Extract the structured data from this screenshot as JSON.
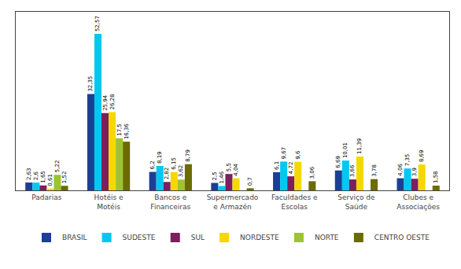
{
  "chart_data": {
    "type": "bar",
    "categories": [
      "Padarias",
      "Hotéis e\nMotéis",
      "Bancos e\nFinanceiras",
      "Supermercado\ne Armazén",
      "Faculdades e\nEscolas",
      "Serviço de\nSaúde",
      "Clubes e\nAssociações"
    ],
    "series": [
      {
        "name": "BRASIL",
        "color": "#1c3f94",
        "values": [
          2.63,
          32.35,
          6.2,
          2.5,
          6.1,
          6.69,
          4.06
        ],
        "value_labels": [
          "2,63",
          "32,35",
          "6,2",
          "2,5",
          "6,1",
          "6,69",
          "4,06"
        ]
      },
      {
        "name": "SUDESTE",
        "color": "#00c8f0",
        "values": [
          2.6,
          52.57,
          8.19,
          1.46,
          9.67,
          10.01,
          7.35
        ],
        "value_labels": [
          "2,6",
          "52,57",
          "8,19",
          "1,46",
          "9,67",
          "10,01",
          "7,35"
        ]
      },
      {
        "name": "SUL",
        "color": "#7b1f5e",
        "values": [
          1.65,
          25.94,
          2.82,
          5.5,
          4.72,
          3.66,
          3.9
        ],
        "value_labels": [
          "1,65",
          "25,94",
          "2,82",
          "5,5",
          "4,72",
          "3,66",
          "3,9"
        ]
      },
      {
        "name": "NORDESTE",
        "color": "#f5d800",
        "values": [
          0.61,
          26.28,
          6.15,
          4.04,
          9.6,
          11.39,
          8.69
        ],
        "value_labels": [
          "0,61",
          "26,28",
          "6,15",
          "4,04",
          "9,6",
          "11,39",
          "8,69"
        ]
      },
      {
        "name": "NORTE",
        "color": "#9dc430",
        "values": [
          5.22,
          17.5,
          3.62,
          0,
          0,
          0,
          0
        ],
        "value_labels": [
          "5,22",
          "17,5",
          "3,62",
          null,
          null,
          null,
          null
        ]
      },
      {
        "name": "CENTRO OESTE",
        "color": "#6b6b00",
        "values": [
          1.52,
          16.36,
          8.79,
          0.7,
          3.06,
          3.78,
          1.58
        ],
        "value_labels": [
          "1,52",
          "16,36",
          "8,79",
          "0,7",
          "3,06",
          "3,78",
          "1,58"
        ]
      }
    ],
    "ylim": [
      0,
      60
    ],
    "data_labels": true,
    "tick_labels": "x",
    "grid": false,
    "legend": "bottom"
  }
}
